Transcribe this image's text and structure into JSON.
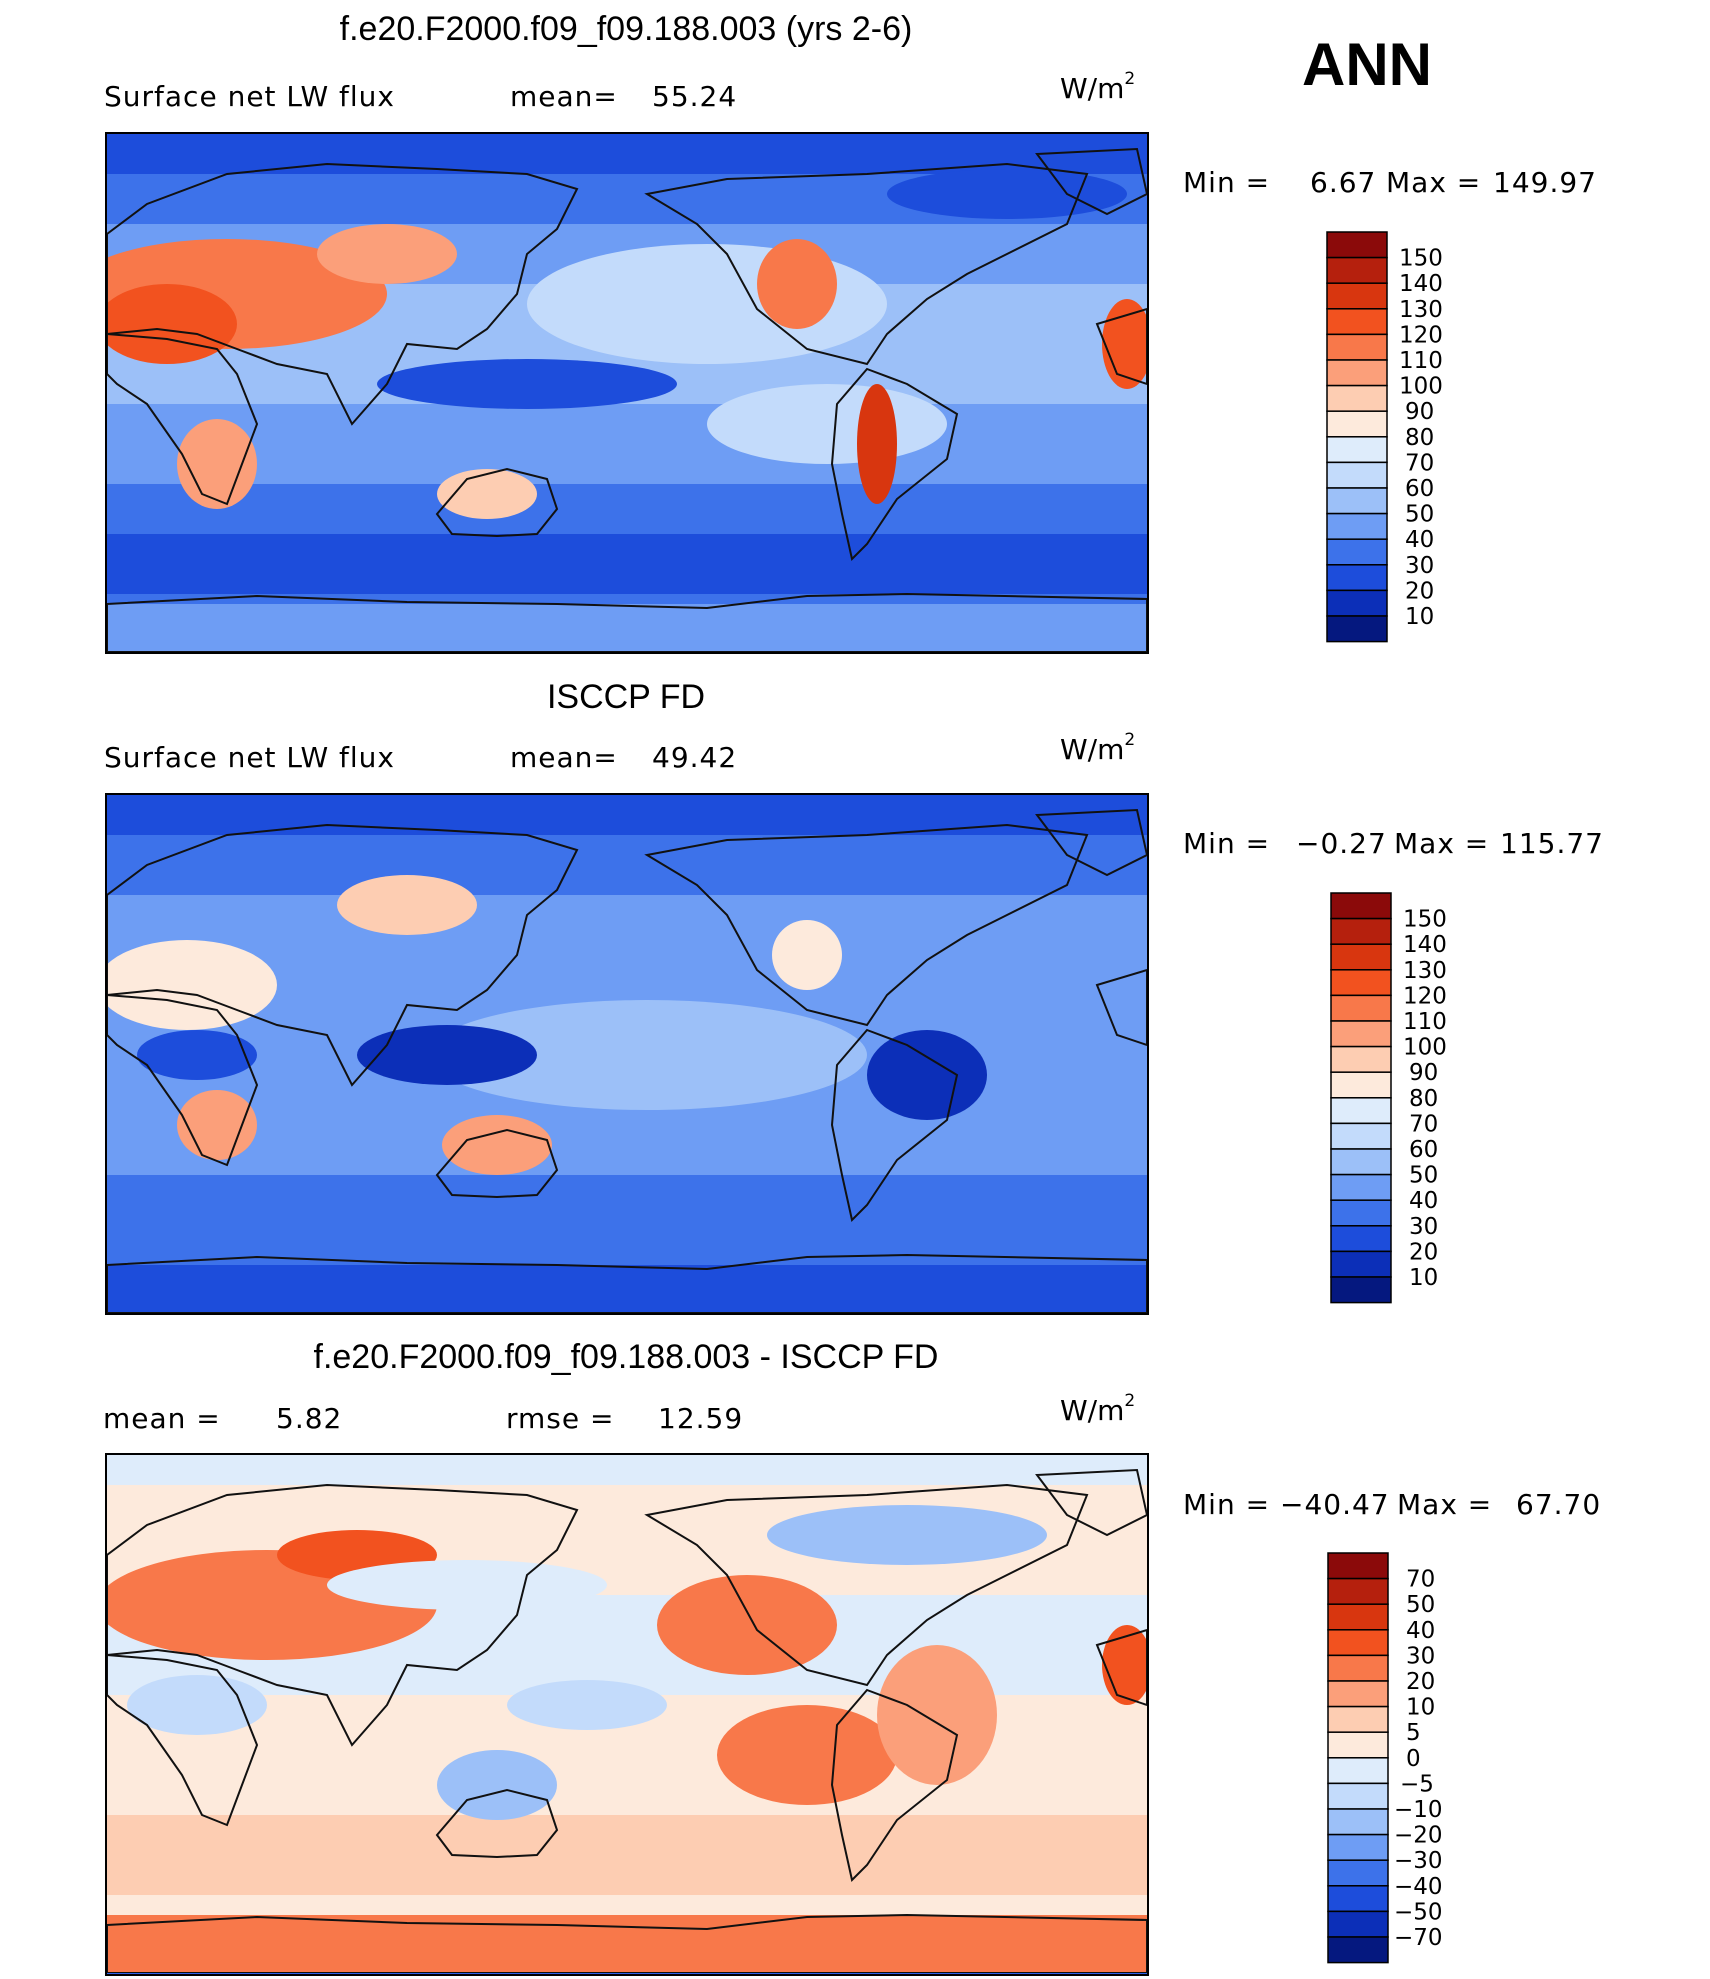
{
  "season": "ANN",
  "units": {
    "base": "W/m",
    "exp": "2"
  },
  "panels": [
    {
      "title": "f.e20.F2000.f09_f09.188.003 (yrs 2-6)",
      "left_text": "Surface net LW flux",
      "stat1_label": "mean=",
      "stat1_value": "55.24",
      "stat2_label": "",
      "stat2_value": "",
      "min_label": "Min =",
      "min_value": "6.67",
      "max_label": "Max =",
      "max_value": "149.97"
    },
    {
      "title": "ISCCP FD",
      "left_text": "Surface net LW flux",
      "stat1_label": "mean=",
      "stat1_value": "49.42",
      "stat2_label": "",
      "stat2_value": "",
      "min_label": "Min =",
      "min_value": "−0.27",
      "max_label": "Max =",
      "max_value": "115.77"
    },
    {
      "title": "f.e20.F2000.f09_f09.188.003 - ISCCP FD",
      "left_text": "",
      "stat1_label": "mean =",
      "stat1_value": "5.82",
      "stat2_label": "rmse =",
      "stat2_value": "12.59",
      "min_label": "Min =",
      "min_value": "−40.47",
      "max_label": "Max =",
      "max_value": "67.70"
    }
  ],
  "chart_data": [
    {
      "type": "heatmap",
      "title": "f.e20.F2000.f09_f09.188.003 (yrs 2-6)",
      "variable": "Surface net LW flux",
      "mean": 55.24,
      "min": 6.67,
      "max": 149.97,
      "units": "W/m2",
      "colorbar_levels": [
        "150",
        "140",
        "130",
        "120",
        "110",
        "100",
        "90",
        "80",
        "70",
        "60",
        "50",
        "40",
        "30",
        "20",
        "10"
      ],
      "colorbar_colors": [
        "#8b0a0a",
        "#b5200d",
        "#d8360f",
        "#f2521f",
        "#f8784a",
        "#fb9f7a",
        "#fdcdb2",
        "#fdeadc",
        "#deecfb",
        "#c3dbfb",
        "#9cc0f8",
        "#6e9df4",
        "#3d72ea",
        "#1d4ddb",
        "#0c2fb8",
        "#05187f"
      ]
    },
    {
      "type": "heatmap",
      "title": "ISCCP FD",
      "variable": "Surface net LW flux",
      "mean": 49.42,
      "min": -0.27,
      "max": 115.77,
      "units": "W/m2",
      "colorbar_levels": [
        "150",
        "140",
        "130",
        "120",
        "110",
        "100",
        "90",
        "80",
        "70",
        "60",
        "50",
        "40",
        "30",
        "20",
        "10"
      ],
      "colorbar_colors": [
        "#8b0a0a",
        "#b5200d",
        "#d8360f",
        "#f2521f",
        "#f8784a",
        "#fb9f7a",
        "#fdcdb2",
        "#fdeadc",
        "#deecfb",
        "#c3dbfb",
        "#9cc0f8",
        "#6e9df4",
        "#3d72ea",
        "#1d4ddb",
        "#0c2fb8",
        "#05187f"
      ]
    },
    {
      "type": "heatmap",
      "title": "f.e20.F2000.f09_f09.188.003 - ISCCP FD",
      "mean": 5.82,
      "rmse": 12.59,
      "min": -40.47,
      "max": 67.7,
      "units": "W/m2",
      "colorbar_levels": [
        "70",
        "50",
        "40",
        "30",
        "20",
        "10",
        "5",
        "0",
        "−5",
        "−10",
        "−20",
        "−30",
        "−40",
        "−50",
        "−70"
      ],
      "colorbar_colors": [
        "#8b0a0a",
        "#b5200d",
        "#d8360f",
        "#f2521f",
        "#f8784a",
        "#fb9f7a",
        "#fdcdb2",
        "#fdeadc",
        "#deecfb",
        "#c3dbfb",
        "#9cc0f8",
        "#6e9df4",
        "#3d72ea",
        "#1d4ddb",
        "#0c2fb8",
        "#05187f"
      ]
    }
  ]
}
